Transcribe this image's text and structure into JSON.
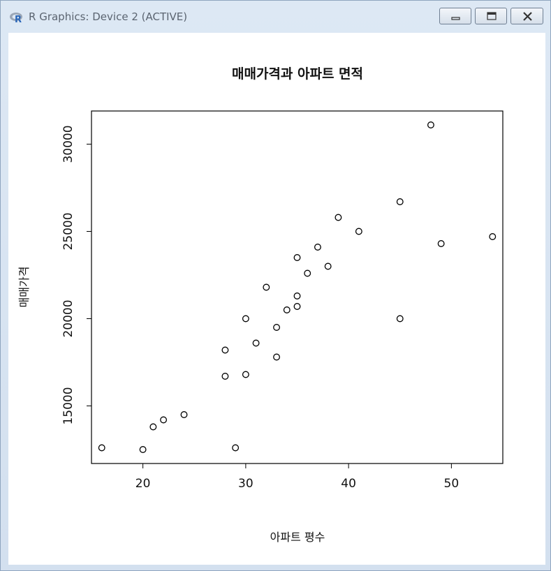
{
  "window": {
    "title": "R Graphics: Device 2 (ACTIVE)",
    "buttons": {
      "minimize": "minimize-icon",
      "maximize": "maximize-icon",
      "close": "close-icon"
    }
  },
  "chart_data": {
    "type": "scatter",
    "title": "매매가격과 아파트 면적",
    "xlabel": "아파트 평수",
    "ylabel": "매매가격",
    "xlim": [
      15,
      55
    ],
    "ylim": [
      11700,
      31900
    ],
    "x_ticks": [
      "20",
      "30",
      "40",
      "50"
    ],
    "y_ticks": [
      "15000",
      "20000",
      "25000",
      "30000"
    ],
    "grid": false,
    "point_style": "open-circle",
    "points": [
      {
        "x": 16,
        "y": 12600
      },
      {
        "x": 20,
        "y": 12500
      },
      {
        "x": 21,
        "y": 13800
      },
      {
        "x": 22,
        "y": 14200
      },
      {
        "x": 24,
        "y": 14500
      },
      {
        "x": 28,
        "y": 16700
      },
      {
        "x": 28,
        "y": 18200
      },
      {
        "x": 29,
        "y": 12600
      },
      {
        "x": 30,
        "y": 16800
      },
      {
        "x": 30,
        "y": 20000
      },
      {
        "x": 31,
        "y": 18600
      },
      {
        "x": 32,
        "y": 21800
      },
      {
        "x": 33,
        "y": 17800
      },
      {
        "x": 33,
        "y": 19500
      },
      {
        "x": 34,
        "y": 20500
      },
      {
        "x": 35,
        "y": 20700
      },
      {
        "x": 35,
        "y": 21300
      },
      {
        "x": 35,
        "y": 23500
      },
      {
        "x": 36,
        "y": 22600
      },
      {
        "x": 37,
        "y": 24100
      },
      {
        "x": 38,
        "y": 23000
      },
      {
        "x": 39,
        "y": 25800
      },
      {
        "x": 41,
        "y": 25000
      },
      {
        "x": 45,
        "y": 20000
      },
      {
        "x": 45,
        "y": 26700
      },
      {
        "x": 48,
        "y": 31100
      },
      {
        "x": 49,
        "y": 24300
      },
      {
        "x": 54,
        "y": 24700
      }
    ]
  }
}
